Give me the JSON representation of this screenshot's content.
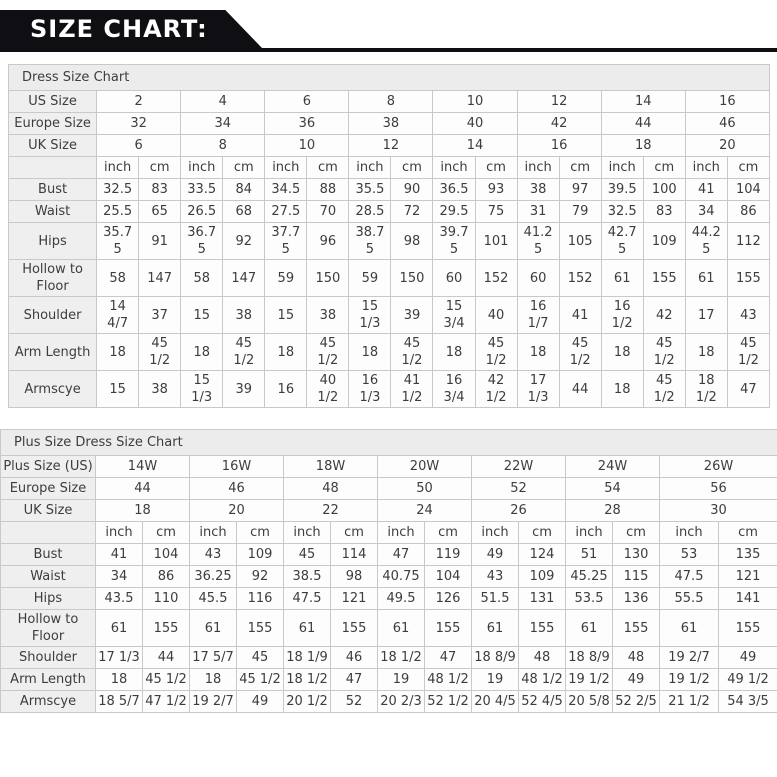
{
  "banner": {
    "title": "SIZE CHART:"
  },
  "colors": {
    "banner_bg": "#0f0f13",
    "banner_text": "#ffffff",
    "header_cell_bg": "#ececec",
    "cell_bg": "#fdfdfd",
    "border": "#c9c9c9",
    "text": "#3d3d3d"
  },
  "tables": [
    {
      "title": "Dress Size Chart",
      "size_rows": [
        {
          "label": "US Size",
          "values": [
            "2",
            "4",
            "6",
            "8",
            "10",
            "12",
            "14",
            "16"
          ]
        },
        {
          "label": "Europe Size",
          "values": [
            "32",
            "34",
            "36",
            "38",
            "40",
            "42",
            "44",
            "46"
          ]
        },
        {
          "label": "UK Size",
          "values": [
            "6",
            "8",
            "10",
            "12",
            "14",
            "16",
            "18",
            "20"
          ]
        }
      ],
      "unit_headers": [
        "inch",
        "cm"
      ],
      "measure_rows": [
        {
          "label": "Bust",
          "values": [
            "32.5",
            "83",
            "33.5",
            "84",
            "34.5",
            "88",
            "35.5",
            "90",
            "36.5",
            "93",
            "38",
            "97",
            "39.5",
            "100",
            "41",
            "104"
          ]
        },
        {
          "label": "Waist",
          "values": [
            "25.5",
            "65",
            "26.5",
            "68",
            "27.5",
            "70",
            "28.5",
            "72",
            "29.5",
            "75",
            "31",
            "79",
            "32.5",
            "83",
            "34",
            "86"
          ]
        },
        {
          "label": "Hips",
          "values": [
            "35.75",
            "91",
            "36.75",
            "92",
            "37.75",
            "96",
            "38.75",
            "98",
            "39.75",
            "101",
            "41.25",
            "105",
            "42.75",
            "109",
            "44.25",
            "112"
          ]
        },
        {
          "label": "Hollow to Floor",
          "values": [
            "58",
            "147",
            "58",
            "147",
            "59",
            "150",
            "59",
            "150",
            "60",
            "152",
            "60",
            "152",
            "61",
            "155",
            "61",
            "155"
          ]
        },
        {
          "label": "Shoulder",
          "values": [
            "14 4/7",
            "37",
            "15",
            "38",
            "15",
            "38",
            "15 1/3",
            "39",
            "15 3/4",
            "40",
            "16 1/7",
            "41",
            "16 1/2",
            "42",
            "17",
            "43"
          ]
        },
        {
          "label": "Arm Length",
          "values": [
            "18",
            "45 1/2",
            "18",
            "45 1/2",
            "18",
            "45 1/2",
            "18",
            "45 1/2",
            "18",
            "45 1/2",
            "18",
            "45 1/2",
            "18",
            "45 1/2",
            "18",
            "45 1/2"
          ]
        },
        {
          "label": "Armscye",
          "values": [
            "15",
            "38",
            "15 1/3",
            "39",
            "16",
            "40 1/2",
            "16 1/3",
            "41 1/2",
            "16 3/4",
            "42 1/2",
            "17 1/3",
            "44",
            "18",
            "45 1/2",
            "18 1/2",
            "47"
          ]
        }
      ]
    },
    {
      "title": "Plus Size Dress Size Chart",
      "size_rows": [
        {
          "label": "Plus Size (US)",
          "values": [
            "14W",
            "16W",
            "18W",
            "20W",
            "22W",
            "24W",
            "26W"
          ]
        },
        {
          "label": "Europe Size",
          "values": [
            "44",
            "46",
            "48",
            "50",
            "52",
            "54",
            "56"
          ]
        },
        {
          "label": "UK Size",
          "values": [
            "18",
            "20",
            "22",
            "24",
            "26",
            "28",
            "30"
          ]
        }
      ],
      "unit_headers": [
        "inch",
        "cm"
      ],
      "measure_rows": [
        {
          "label": "Bust",
          "values": [
            "41",
            "104",
            "43",
            "109",
            "45",
            "114",
            "47",
            "119",
            "49",
            "124",
            "51",
            "130",
            "53",
            "135"
          ]
        },
        {
          "label": "Waist",
          "values": [
            "34",
            "86",
            "36.25",
            "92",
            "38.5",
            "98",
            "40.75",
            "104",
            "43",
            "109",
            "45.25",
            "115",
            "47.5",
            "121"
          ]
        },
        {
          "label": "Hips",
          "values": [
            "43.5",
            "110",
            "45.5",
            "116",
            "47.5",
            "121",
            "49.5",
            "126",
            "51.5",
            "131",
            "53.5",
            "136",
            "55.5",
            "141"
          ]
        },
        {
          "label": "Hollow to Floor",
          "values": [
            "61",
            "155",
            "61",
            "155",
            "61",
            "155",
            "61",
            "155",
            "61",
            "155",
            "61",
            "155",
            "61",
            "155"
          ]
        },
        {
          "label": "Shoulder",
          "values": [
            "17 1/3",
            "44",
            "17 5/7",
            "45",
            "18 1/9",
            "46",
            "18 1/2",
            "47",
            "18 8/9",
            "48",
            "18 8/9",
            "48",
            "19 2/7",
            "49"
          ]
        },
        {
          "label": "Arm Length",
          "values": [
            "18",
            "45 1/2",
            "18",
            "45 1/2",
            "18 1/2",
            "47",
            "19",
            "48 1/2",
            "19",
            "48 1/2",
            "19 1/2",
            "49",
            "19 1/2",
            "49 1/2"
          ]
        },
        {
          "label": "Armscye",
          "values": [
            "18 5/7",
            "47 1/2",
            "19 2/7",
            "49",
            "20 1/2",
            "52",
            "20 2/3",
            "52 1/2",
            "20 4/5",
            "52 4/5",
            "20 5/8",
            "52 2/5",
            "21 1/2",
            "54 3/5"
          ]
        }
      ]
    }
  ]
}
